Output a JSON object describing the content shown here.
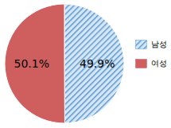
{
  "chart_data": {
    "type": "pie",
    "categories": [
      "남성",
      "여성"
    ],
    "values": [
      49.9,
      50.1
    ],
    "value_labels": [
      "49.9%",
      "50.1%"
    ],
    "colors": [
      "#5b9bd5",
      "#cf5f5f"
    ],
    "data_labels": true,
    "legend": "right"
  }
}
